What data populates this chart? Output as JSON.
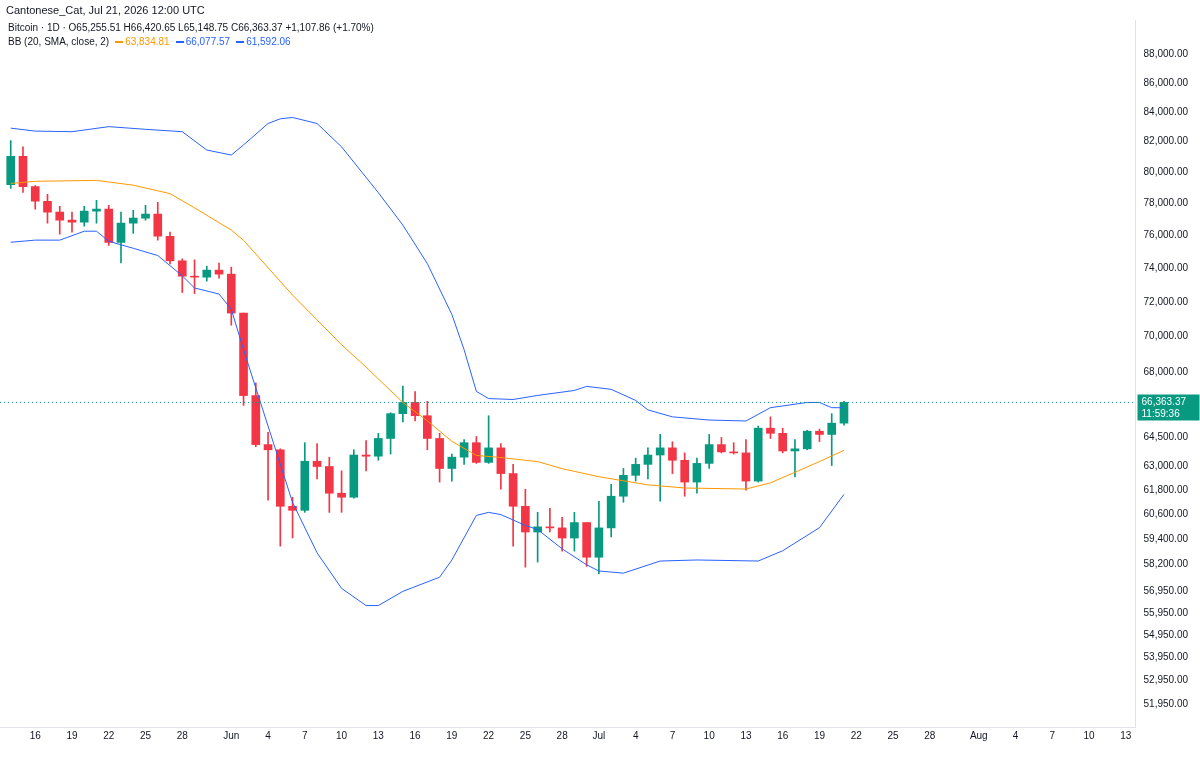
{
  "chart_data": {
    "type": "candlestick",
    "title": "Cantonese_Cat, Jul 21, 2026 12:00 UTC",
    "subtitle": "Bitcoin · 1D · O65,255.51 H66,420.65 L65,148.75 C66,363.37 +1,107.86 (+1.70%)",
    "legend_title": "BB (20, SMA, close, 2)",
    "legend": "top left",
    "log": "y",
    "xlim": [
      "2026-05-13T03:00",
      "2026-08-13T19:00"
    ],
    "xticks": [
      {
        "value": "2026-05-16",
        "label": "16"
      },
      {
        "value": "2026-05-19",
        "label": "19"
      },
      {
        "value": "2026-05-22",
        "label": "22"
      },
      {
        "value": "2026-05-25",
        "label": "25"
      },
      {
        "value": "2026-05-28",
        "label": "28"
      },
      {
        "value": "2026-06-01",
        "label": "Jun"
      },
      {
        "value": "2026-06-04",
        "label": "4"
      },
      {
        "value": "2026-06-07",
        "label": "7"
      },
      {
        "value": "2026-06-10",
        "label": "10"
      },
      {
        "value": "2026-06-13",
        "label": "13"
      },
      {
        "value": "2026-06-16",
        "label": "16"
      },
      {
        "value": "2026-06-19",
        "label": "19"
      },
      {
        "value": "2026-06-22",
        "label": "22"
      },
      {
        "value": "2026-06-25",
        "label": "25"
      },
      {
        "value": "2026-06-28",
        "label": "28"
      },
      {
        "value": "2026-07-01",
        "label": "Jul"
      },
      {
        "value": "2026-07-04",
        "label": "4"
      },
      {
        "value": "2026-07-07",
        "label": "7"
      },
      {
        "value": "2026-07-10",
        "label": "10"
      },
      {
        "value": "2026-07-13",
        "label": "13"
      },
      {
        "value": "2026-07-16",
        "label": "16"
      },
      {
        "value": "2026-07-19",
        "label": "19"
      },
      {
        "value": "2026-07-22",
        "label": "22"
      },
      {
        "value": "2026-07-25",
        "label": "25"
      },
      {
        "value": "2026-07-28",
        "label": "28"
      },
      {
        "value": "2026-08-01",
        "label": "Aug"
      },
      {
        "value": "2026-08-04",
        "label": "4"
      },
      {
        "value": "2026-08-07",
        "label": "7"
      },
      {
        "value": "2026-08-10",
        "label": "10"
      },
      {
        "value": "2026-08-13",
        "label": "13"
      }
    ],
    "ylim": [
      51000,
      90500
    ],
    "yticks": [
      {
        "value": 88000,
        "label": "88,000.00"
      },
      {
        "value": 86000,
        "label": "86,000.00"
      },
      {
        "value": 84000,
        "label": "84,000.00"
      },
      {
        "value": 82000,
        "label": "82,000.00"
      },
      {
        "value": 80000,
        "label": "80,000.00"
      },
      {
        "value": 78000,
        "label": "78,000.00"
      },
      {
        "value": 76000,
        "label": "76,000.00"
      },
      {
        "value": 74000,
        "label": "74,000.00"
      },
      {
        "value": 72000,
        "label": "72,000.00"
      },
      {
        "value": 70000,
        "label": "70,000.00"
      },
      {
        "value": 68000,
        "label": "68,000.00"
      },
      {
        "value": 64500,
        "label": "64,500.00"
      },
      {
        "value": 63000,
        "label": "63,000.00"
      },
      {
        "value": 61800,
        "label": "61,800.00"
      },
      {
        "value": 60600,
        "label": "60,600.00"
      },
      {
        "value": 59400,
        "label": "59,400.00"
      },
      {
        "value": 58200,
        "label": "58,200.00"
      },
      {
        "value": 56950,
        "label": "56,950.00"
      },
      {
        "value": 55950,
        "label": "55,950.00"
      },
      {
        "value": 54950,
        "label": "54,950.00"
      },
      {
        "value": 53950,
        "label": "53,950.00"
      },
      {
        "value": 52950,
        "label": "52,950.00"
      },
      {
        "value": 51950,
        "label": "51,950.00"
      }
    ],
    "ref_lines": [
      {
        "axis": "y",
        "value": 66363.37,
        "label": "66,363.37",
        "color": "#089981",
        "line_style": "dotted"
      }
    ],
    "annotations": [
      "11:59:36"
    ],
    "series": [
      {
        "x": [
          "2026-05-14",
          "2026-05-15",
          "2026-05-16",
          "2026-05-17",
          "2026-05-18",
          "2026-05-19",
          "2026-05-20",
          "2026-05-21",
          "2026-05-22",
          "2026-05-23",
          "2026-05-24",
          "2026-05-25",
          "2026-05-26",
          "2026-05-27",
          "2026-05-28",
          "2026-05-29",
          "2026-05-30",
          "2026-05-31",
          "2026-06-01",
          "2026-06-02",
          "2026-06-03",
          "2026-06-04",
          "2026-06-05",
          "2026-06-06",
          "2026-06-07",
          "2026-06-08",
          "2026-06-09",
          "2026-06-10",
          "2026-06-11",
          "2026-06-12",
          "2026-06-13",
          "2026-06-14",
          "2026-06-15",
          "2026-06-16",
          "2026-06-17",
          "2026-06-18",
          "2026-06-19",
          "2026-06-20",
          "2026-06-21",
          "2026-06-22",
          "2026-06-23",
          "2026-06-24",
          "2026-06-25",
          "2026-06-26",
          "2026-06-27",
          "2026-06-28",
          "2026-06-29",
          "2026-06-30",
          "2026-07-01",
          "2026-07-02",
          "2026-07-03",
          "2026-07-04",
          "2026-07-05",
          "2026-07-06",
          "2026-07-07",
          "2026-07-08",
          "2026-07-09",
          "2026-07-10",
          "2026-07-11",
          "2026-07-12",
          "2026-07-13",
          "2026-07-14",
          "2026-07-15",
          "2026-07-16",
          "2026-07-17",
          "2026-07-18",
          "2026-07-19",
          "2026-07-20",
          "2026-07-21"
        ],
        "ohlc": [
          [
            79190,
            82070,
            78940,
            81030
          ],
          [
            81030,
            81660,
            78690,
            79060
          ],
          [
            79060,
            79120,
            77625,
            78125
          ],
          [
            78125,
            78560,
            76750,
            77440
          ],
          [
            77440,
            77810,
            76060,
            76940
          ],
          [
            76940,
            77440,
            76190,
            76810
          ],
          [
            76810,
            77810,
            76560,
            77500
          ],
          [
            77500,
            78190,
            76750,
            77625
          ],
          [
            77625,
            77875,
            75380,
            75560
          ],
          [
            75560,
            77440,
            74310,
            76750
          ],
          [
            76750,
            77560,
            76120,
            77060
          ],
          [
            77060,
            77875,
            76940,
            77310
          ],
          [
            77310,
            78060,
            75690,
            75940
          ],
          [
            75940,
            76190,
            74250,
            74440
          ],
          [
            74440,
            74560,
            72550,
            73520
          ],
          [
            73520,
            74500,
            72490,
            73460
          ],
          [
            73460,
            74120,
            73220,
            73880
          ],
          [
            73880,
            74310,
            73400,
            73640
          ],
          [
            73640,
            74060,
            70650,
            71350
          ],
          [
            71350,
            71350,
            66200,
            66730
          ],
          [
            66730,
            67420,
            64020,
            64130
          ],
          [
            64130,
            64770,
            61300,
            63860
          ],
          [
            63860,
            63910,
            59060,
            61000
          ],
          [
            61000,
            61450,
            59450,
            60800
          ],
          [
            60800,
            64230,
            60700,
            63270
          ],
          [
            63270,
            64180,
            62370,
            63000
          ],
          [
            63000,
            63480,
            60700,
            61650
          ],
          [
            61650,
            62780,
            60700,
            61450
          ],
          [
            61450,
            63860,
            61400,
            63590
          ],
          [
            63590,
            64340,
            62780,
            63530
          ],
          [
            63530,
            64720,
            63320,
            64450
          ],
          [
            64450,
            65810,
            63640,
            65760
          ],
          [
            65760,
            67250,
            65320,
            66360
          ],
          [
            66360,
            66950,
            65370,
            65650
          ],
          [
            65650,
            66420,
            63860,
            64450
          ],
          [
            64450,
            64720,
            62210,
            62900
          ],
          [
            62900,
            63640,
            62260,
            63480
          ],
          [
            63480,
            64390,
            63110,
            64230
          ],
          [
            64230,
            64550,
            63160,
            63210
          ],
          [
            63210,
            65650,
            63160,
            63960
          ],
          [
            63960,
            64180,
            61850,
            62640
          ],
          [
            62640,
            63110,
            59060,
            61000
          ],
          [
            61000,
            61850,
            58060,
            59740
          ],
          [
            59740,
            60700,
            58300,
            59990
          ],
          [
            59990,
            60900,
            59740,
            59940
          ],
          [
            59940,
            60450,
            58820,
            59450
          ],
          [
            59450,
            60700,
            58820,
            60200
          ],
          [
            60200,
            60200,
            58100,
            58530
          ],
          [
            58530,
            61250,
            57760,
            59940
          ],
          [
            59940,
            62100,
            59500,
            61500
          ],
          [
            61500,
            62900,
            61200,
            62550
          ],
          [
            62550,
            63430,
            62260,
            63110
          ],
          [
            63110,
            63960,
            62370,
            63590
          ],
          [
            63590,
            64660,
            61250,
            63960
          ],
          [
            63960,
            64280,
            62640,
            63320
          ],
          [
            63320,
            63700,
            61500,
            62210
          ],
          [
            62210,
            63430,
            61650,
            63160
          ],
          [
            63160,
            64660,
            62900,
            64130
          ],
          [
            64130,
            64500,
            63700,
            63750
          ],
          [
            63750,
            64230,
            63640,
            63700
          ],
          [
            63700,
            64390,
            61800,
            62260
          ],
          [
            62260,
            65100,
            62210,
            64990
          ],
          [
            64990,
            65590,
            64450,
            64720
          ],
          [
            64720,
            64990,
            63700,
            63800
          ],
          [
            63800,
            64390,
            62470,
            63910
          ],
          [
            63910,
            64880,
            63860,
            64830
          ],
          [
            64830,
            64940,
            64290,
            64660
          ],
          [
            64660,
            65760,
            63050,
            65255.51
          ],
          [
            65255.51,
            66420.65,
            65148.75,
            66363.37
          ]
        ],
        "colors": [
          "#089981",
          "#f23645",
          "#f23645",
          "#f23645",
          "#f23645",
          "#f23645",
          "#089981",
          "#089981",
          "#f23645",
          "#089981",
          "#089981",
          "#089981",
          "#f23645",
          "#f23645",
          "#f23645",
          "#f23645",
          "#089981",
          "#f23645",
          "#f23645",
          "#f23645",
          "#f23645",
          "#f23645",
          "#f23645",
          "#f23645",
          "#089981",
          "#f23645",
          "#f23645",
          "#f23645",
          "#089981",
          "#f23645",
          "#089981",
          "#089981",
          "#089981",
          "#f23645",
          "#f23645",
          "#f23645",
          "#089981",
          "#089981",
          "#f23645",
          "#089981",
          "#f23645",
          "#f23645",
          "#f23645",
          "#089981",
          "#f23645",
          "#f23645",
          "#089981",
          "#f23645",
          "#089981",
          "#089981",
          "#089981",
          "#089981",
          "#089981",
          "#089981",
          "#f23645",
          "#f23645",
          "#089981",
          "#089981",
          "#f23645",
          "#f23645",
          "#f23645",
          "#089981",
          "#f23645",
          "#f23645",
          "#089981",
          "#089981",
          "#f23645",
          "#089981",
          "#089981"
        ]
      },
      {
        "type": "line",
        "name": "63,834.81",
        "color": "#ff9800",
        "x": [
          "2026-05-14",
          "2026-05-16",
          "2026-05-21",
          "2026-05-24",
          "2026-05-27",
          "2026-05-29",
          "2026-06-01",
          "2026-06-02",
          "2026-06-06",
          "2026-06-10",
          "2026-06-12",
          "2026-06-15",
          "2026-06-17",
          "2026-06-19",
          "2026-06-21",
          "2026-06-23",
          "2026-06-26",
          "2026-06-28",
          "2026-07-01",
          "2026-07-05",
          "2026-07-08",
          "2026-07-13",
          "2026-07-15",
          "2026-07-19",
          "2026-07-21"
        ],
        "values": [
          79260,
          79400,
          79460,
          79150,
          78610,
          77710,
          76320,
          75690,
          72400,
          69540,
          68290,
          66360,
          65380,
          64300,
          63570,
          63460,
          63250,
          62890,
          62480,
          62070,
          61910,
          61860,
          62170,
          63250,
          63834.81
        ]
      },
      {
        "type": "line",
        "name": "66,077.57",
        "color": "#2962ff",
        "x": [
          "2026-05-14",
          "2026-05-16",
          "2026-05-19",
          "2026-05-22",
          "2026-05-25",
          "2026-05-28",
          "2026-05-30",
          "2026-06-01",
          "2026-06-02",
          "2026-06-04",
          "2026-06-05",
          "2026-06-06",
          "2026-06-08",
          "2026-06-10",
          "2026-06-13",
          "2026-06-15",
          "2026-06-17",
          "2026-06-19",
          "2026-06-20",
          "2026-06-21",
          "2026-06-22",
          "2026-06-24",
          "2026-06-26",
          "2026-06-29",
          "2026-06-30",
          "2026-07-02",
          "2026-07-04",
          "2026-07-05",
          "2026-07-07",
          "2026-07-10",
          "2026-07-13",
          "2026-07-15",
          "2026-07-18",
          "2026-07-19",
          "2026-07-20",
          "2026-07-21"
        ],
        "values": [
          82900,
          82700,
          82660,
          83000,
          82820,
          82660,
          81440,
          81110,
          81780,
          83210,
          83530,
          83620,
          83210,
          81650,
          78670,
          76630,
          74270,
          71270,
          69260,
          66960,
          66570,
          66520,
          66740,
          67010,
          67230,
          67070,
          66470,
          65960,
          65590,
          65420,
          65370,
          66080,
          66360,
          66360,
          66080,
          66077.57
        ]
      },
      {
        "type": "line",
        "name": "61,592.06",
        "color": "#2962ff",
        "x": [
          "2026-05-14",
          "2026-05-16",
          "2026-05-18",
          "2026-05-20",
          "2026-05-21",
          "2026-05-22",
          "2026-05-24",
          "2026-05-26",
          "2026-05-28",
          "2026-05-29",
          "2026-05-31",
          "2026-06-01",
          "2026-06-02",
          "2026-06-06",
          "2026-06-08",
          "2026-06-10",
          "2026-06-12",
          "2026-06-13",
          "2026-06-15",
          "2026-06-18",
          "2026-06-19",
          "2026-06-21",
          "2026-06-22",
          "2026-06-23",
          "2026-06-25",
          "2026-06-26",
          "2026-06-28",
          "2026-06-30",
          "2026-07-01",
          "2026-07-03",
          "2026-07-06",
          "2026-07-09",
          "2026-07-14",
          "2026-07-16",
          "2026-07-19",
          "2026-07-21"
        ],
        "values": [
          75570,
          75700,
          75700,
          76250,
          76250,
          75630,
          75200,
          74760,
          73540,
          72820,
          72460,
          71570,
          69260,
          61190,
          58740,
          57070,
          56280,
          56280,
          56930,
          57590,
          58400,
          60550,
          60700,
          60590,
          60060,
          59860,
          58930,
          58170,
          57880,
          57780,
          58350,
          58400,
          58350,
          58840,
          59950,
          61592.06
        ]
      }
    ]
  }
}
